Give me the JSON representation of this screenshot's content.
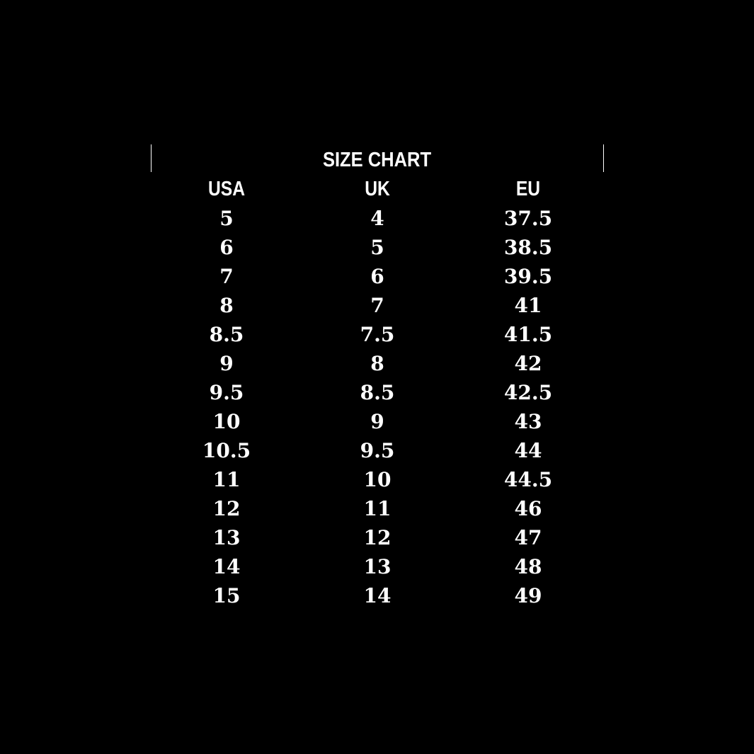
{
  "title": "SIZE CHART",
  "columns": [
    "USA",
    "UK",
    "EU"
  ],
  "rows": [
    [
      "5",
      "4",
      "37.5"
    ],
    [
      "6",
      "5",
      "38.5"
    ],
    [
      "7",
      "6",
      "39.5"
    ],
    [
      "8",
      "7",
      "41"
    ],
    [
      "8.5",
      "7.5",
      "41.5"
    ],
    [
      "9",
      "8",
      "42"
    ],
    [
      "9.5",
      "8.5",
      "42.5"
    ],
    [
      "10",
      "9",
      "43"
    ],
    [
      "10.5",
      "9.5",
      "44"
    ],
    [
      "11",
      "10",
      "44.5"
    ],
    [
      "12",
      "11",
      "46"
    ],
    [
      "13",
      "12",
      "47"
    ],
    [
      "14",
      "13",
      "48"
    ],
    [
      "15",
      "14",
      "49"
    ]
  ],
  "colors": {
    "background": "#000000",
    "text": "#ffffff"
  }
}
